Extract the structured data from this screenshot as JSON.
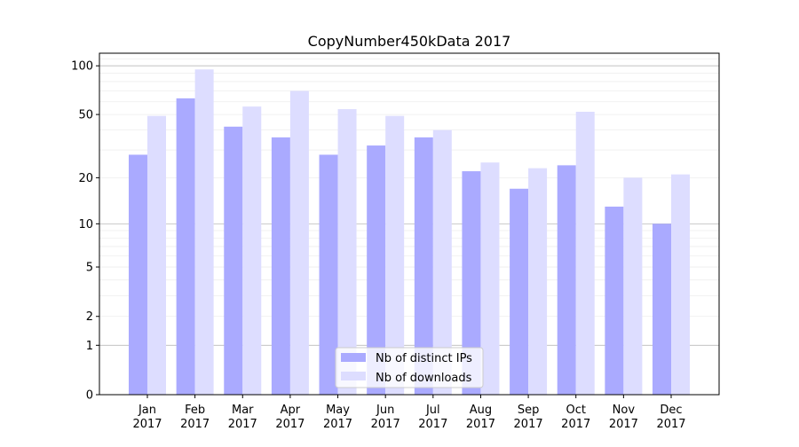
{
  "chart_data": {
    "type": "bar",
    "title": "CopyNumber450kData 2017",
    "xlabel": "",
    "ylabel": "",
    "yscale": "log10(1+y)",
    "ylim": [
      0,
      120
    ],
    "yticks": [
      0,
      1,
      2,
      5,
      10,
      20,
      50,
      100
    ],
    "ytick_labels": [
      "0",
      "1",
      "2",
      "5",
      "10",
      "20",
      "50",
      "100"
    ],
    "grid": true,
    "legend_position": "bottom-center",
    "categories": [
      "Jan\n2017",
      "Feb\n2017",
      "Mar\n2017",
      "Apr\n2017",
      "May\n2017",
      "Jun\n2017",
      "Jul\n2017",
      "Aug\n2017",
      "Sep\n2017",
      "Oct\n2017",
      "Nov\n2017",
      "Dec\n2017"
    ],
    "series": [
      {
        "name": "Nb of distinct IPs",
        "color": "#aaaaff",
        "values": [
          28,
          63,
          42,
          36,
          28,
          32,
          36,
          22,
          17,
          24,
          13,
          10
        ]
      },
      {
        "name": "Nb of downloads",
        "color": "#ddddff",
        "values": [
          49,
          95,
          56,
          70,
          54,
          49,
          40,
          25,
          23,
          52,
          20,
          21
        ]
      }
    ]
  }
}
